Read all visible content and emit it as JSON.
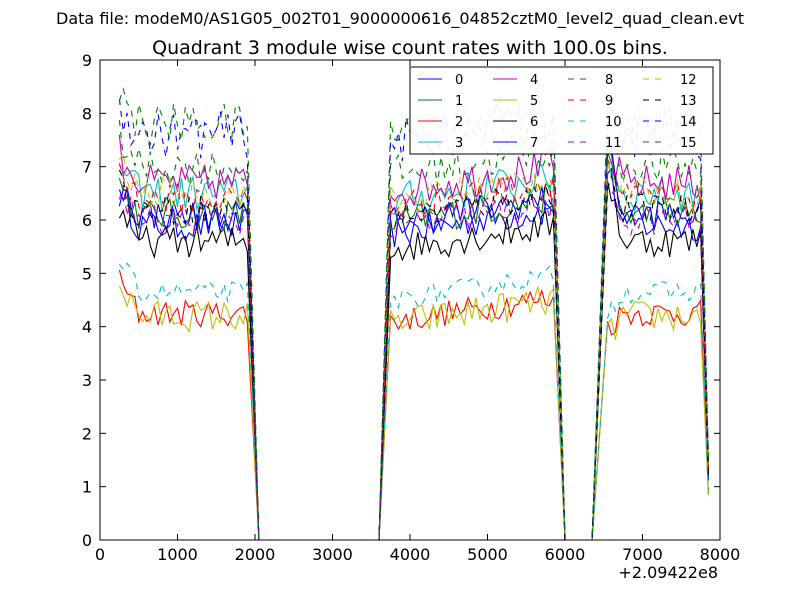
{
  "chart_data": {
    "type": "line",
    "suptitle": "Data file: modeM0/AS1G05_002T01_9000000616_04852cztM0_level2_quad_clean.evt",
    "title": "Quadrant 3 module wise count rates with 100.0s bins.",
    "xlabel": "",
    "ylabel": "",
    "x_offset_label": "+2.09422e8",
    "xlim": [
      0,
      8000
    ],
    "ylim": [
      0,
      9
    ],
    "xticks": [
      0,
      1000,
      2000,
      3000,
      4000,
      5000,
      6000,
      7000,
      8000
    ],
    "yticks": [
      0,
      1,
      2,
      3,
      4,
      5,
      6,
      7,
      8,
      9
    ],
    "legend_position": "top-right",
    "segments": [
      {
        "start": 250,
        "end": 1900,
        "drop_end": 2050
      },
      {
        "start": 3750,
        "end": 5850,
        "drop_start": 3600,
        "drop_end": 6000
      },
      {
        "start": 6550,
        "end": 7750,
        "drop_start": 6350,
        "drop_end": 7850
      }
    ],
    "series": [
      {
        "name": "0",
        "color": "#0000ff",
        "style": "solid",
        "base": 5.9,
        "amp": 0.3,
        "g3": 7.0
      },
      {
        "name": "1",
        "color": "#008000",
        "style": "solid",
        "base": 6.1,
        "amp": 0.3,
        "g3": 7.1
      },
      {
        "name": "2",
        "color": "#ff0000",
        "style": "solid",
        "base": 4.25,
        "amp": 0.25,
        "g3": 4.0
      },
      {
        "name": "3",
        "color": "#00bfbf",
        "style": "solid",
        "base": 6.5,
        "amp": 0.35,
        "g3": 7.2
      },
      {
        "name": "4",
        "color": "#bf00bf",
        "style": "solid",
        "base": 6.7,
        "amp": 0.35,
        "g3": 7.3
      },
      {
        "name": "5",
        "color": "#bfbf00",
        "style": "solid",
        "base": 4.2,
        "amp": 0.3,
        "g3": 3.8
      },
      {
        "name": "6",
        "color": "#000000",
        "style": "solid",
        "base": 5.6,
        "amp": 0.3,
        "g3": 6.9
      },
      {
        "name": "7",
        "color": "#0000ff",
        "style": "solid",
        "base": 6.1,
        "amp": 0.3,
        "g3": 7.4
      },
      {
        "name": "8",
        "color": "#008000",
        "style": "dashed",
        "base": 7.0,
        "amp": 0.35,
        "g3": 7.6
      },
      {
        "name": "9",
        "color": "#ff0000",
        "style": "dashed",
        "base": 6.4,
        "amp": 0.3,
        "g3": 7.2
      },
      {
        "name": "10",
        "color": "#00bfbf",
        "style": "dashed",
        "base": 4.65,
        "amp": 0.2,
        "g3": 4.3
      },
      {
        "name": "11",
        "color": "#bf00bf",
        "style": "dashed",
        "base": 6.0,
        "amp": 0.3,
        "g3": 6.4
      },
      {
        "name": "12",
        "color": "#bfbf00",
        "style": "dashed",
        "base": 6.5,
        "amp": 0.3,
        "g3": 7.0
      },
      {
        "name": "13",
        "color": "#000000",
        "style": "dashed",
        "base": 6.2,
        "amp": 0.3,
        "g3": 6.8
      },
      {
        "name": "14",
        "color": "#0000ff",
        "style": "dashed",
        "base": 7.6,
        "amp": 0.45,
        "g3": 7.7
      },
      {
        "name": "15",
        "color": "#008000",
        "style": "dashed",
        "base": 7.8,
        "amp": 0.4,
        "g3": 7.8
      }
    ]
  }
}
